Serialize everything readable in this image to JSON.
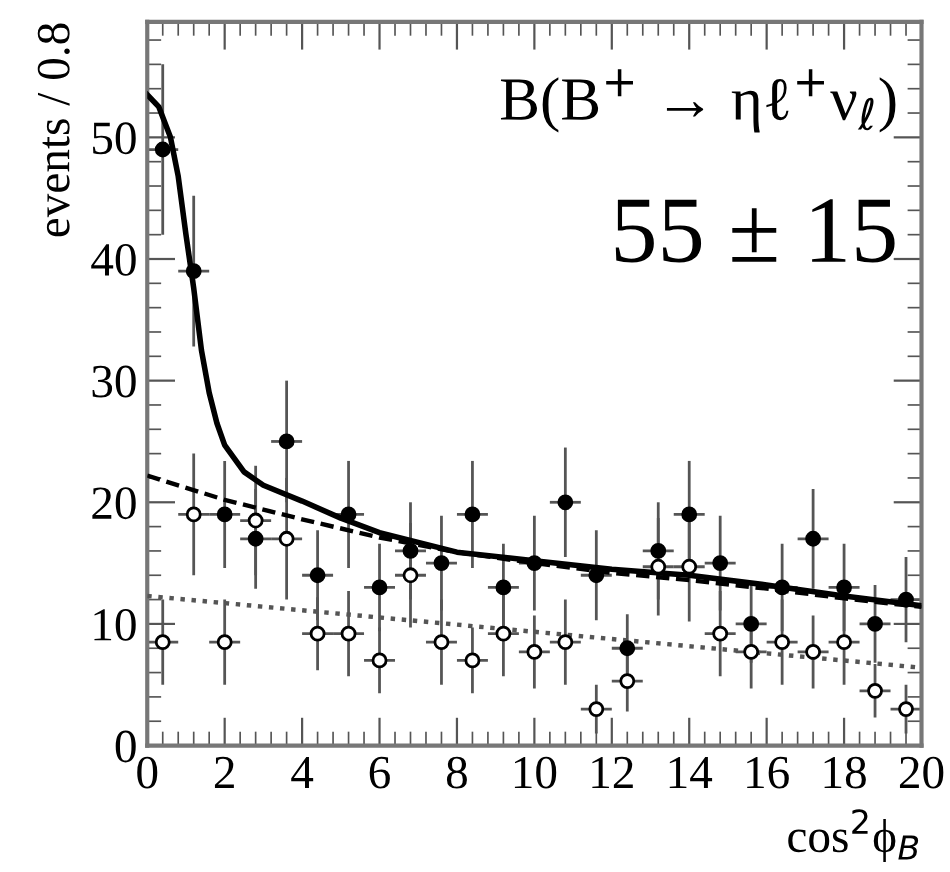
{
  "chart_data": {
    "type": "scatter",
    "xlabel": "cos$^{2}$ϕ$_{B}$",
    "ylabel": "events / 0.8",
    "annotations": [
      "B(B$^{+}$ → ηℓ$^{+}$ν$_{ℓ}$)",
      "55 ± 15"
    ],
    "xlim": [
      0,
      20
    ],
    "ylim": [
      0,
      59.5
    ],
    "xticks": [
      0,
      2,
      4,
      6,
      8,
      10,
      12,
      14,
      16,
      18,
      20
    ],
    "yticks": [
      0,
      10,
      20,
      30,
      40,
      50
    ],
    "grid": false,
    "legend": false,
    "series": [
      {
        "marker": "circle",
        "color": "#000000",
        "x": [
          0.4,
          1.2,
          2.0,
          2.8,
          3.6,
          4.4,
          5.2,
          6.0,
          6.8,
          7.6,
          8.4,
          9.2,
          10.0,
          10.8,
          11.6,
          12.4,
          13.2,
          14.0,
          14.8,
          15.6,
          16.4,
          17.2,
          18.0,
          18.8,
          19.6
        ],
        "values": [
          49,
          39,
          19,
          17,
          25,
          14,
          19,
          13,
          16,
          15,
          19,
          13,
          15,
          20,
          14,
          8,
          16,
          19,
          15,
          10,
          13,
          17,
          13,
          10,
          12
        ],
        "errors": [
          7,
          6.2,
          4.4,
          4.1,
          5,
          3.7,
          4.4,
          3.6,
          4,
          3.9,
          4.4,
          3.6,
          3.9,
          4.5,
          3.7,
          2.8,
          4,
          4.4,
          3.9,
          3.2,
          3.6,
          4.1,
          3.6,
          3.2,
          3.5
        ],
        "xerrors": [
          0.4,
          0.4,
          0.4,
          0.4,
          0.4,
          0.4,
          0.4,
          0.4,
          0.4,
          0.4,
          0.4,
          0.4,
          0.4,
          0.4,
          0.4,
          0.4,
          0.4,
          0.4,
          0.4,
          0.4,
          0.4,
          0.4,
          0.4,
          0.4,
          0.4
        ]
      },
      {
        "marker": "circle",
        "color": "#ffffff",
        "x": [
          0.4,
          1.2,
          2.0,
          2.8,
          3.6,
          4.4,
          5.2,
          6.0,
          6.8,
          7.6,
          8.4,
          9.2,
          10.0,
          10.8,
          11.6,
          12.4,
          13.2,
          14.0,
          14.8,
          15.6,
          16.4,
          17.2,
          18.0,
          18.8,
          19.6
        ],
        "values": [
          8.5,
          19,
          8.5,
          18.5,
          17,
          9.2,
          9.2,
          7,
          14,
          8.5,
          7,
          9.2,
          7.7,
          8.5,
          3,
          5.3,
          14.7,
          14.7,
          9.2,
          7.7,
          8.5,
          7.7,
          8.5,
          4.5,
          3
        ],
        "errors": [
          3.5,
          5,
          3.5,
          4.5,
          5,
          3,
          3.5,
          2.7,
          4.3,
          3.5,
          2.7,
          3.5,
          3,
          3.5,
          2,
          2.5,
          4,
          4.5,
          3.5,
          3,
          3.5,
          3,
          3.5,
          2.2,
          2
        ],
        "xerrors": [
          0.4,
          0.4,
          0.4,
          0.4,
          0.4,
          0.4,
          0.4,
          0.4,
          0.4,
          0.4,
          0.4,
          0.4,
          0.4,
          0.4,
          0.4,
          0.4,
          0.4,
          0.4,
          0.4,
          0.4,
          0.4,
          0.4,
          0.4,
          0.4,
          0.4
        ]
      },
      {
        "type": "line",
        "line_style": "solid",
        "color": "#000000",
        "x": [
          0,
          0.3,
          0.6,
          0.8,
          1.0,
          1.2,
          1.4,
          1.6,
          1.8,
          2.0,
          2.5,
          3,
          4,
          5,
          6,
          8,
          10,
          12,
          14,
          16,
          18,
          20
        ],
        "values": [
          53.5,
          52.5,
          50,
          46.8,
          42,
          37.6,
          32.5,
          29,
          26.5,
          24.7,
          22.5,
          21.4,
          20.1,
          18.7,
          17.5,
          15.9,
          15.2,
          14.5,
          14.0,
          13.2,
          12.3,
          11.5
        ]
      },
      {
        "type": "line",
        "line_style": "dashed",
        "color": "#000000",
        "x": [
          0,
          2,
          4,
          6,
          8,
          10,
          12,
          14,
          16,
          18,
          20
        ],
        "values": [
          22.2,
          20.2,
          18.6,
          17.1,
          15.9,
          15.0,
          14.2,
          13.6,
          12.9,
          12.1,
          11.4
        ]
      },
      {
        "type": "line",
        "line_style": "dotted",
        "color": "#555555",
        "x": [
          0,
          20
        ],
        "values": [
          12.3,
          6.4
        ]
      }
    ]
  }
}
